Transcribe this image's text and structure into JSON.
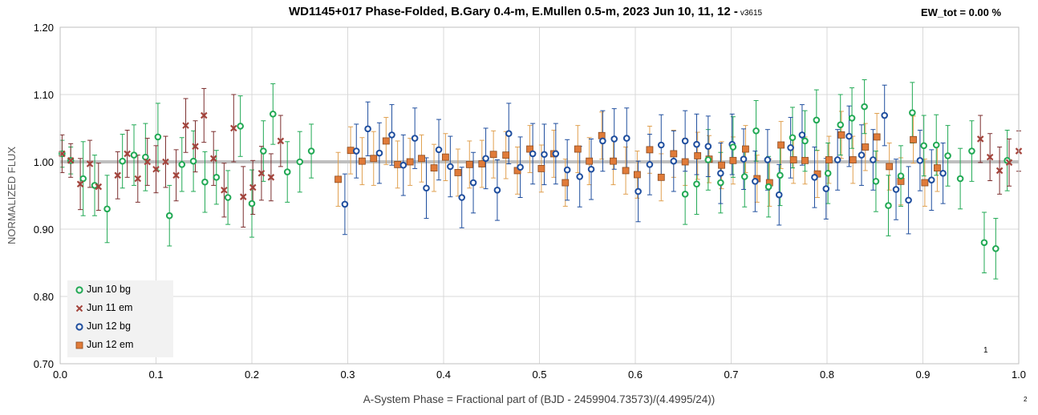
{
  "header": {
    "title": "WD1145+017 Phase-Folded, B.Gary 0.4-m, E.Mullen 0.5-m, 2023 Jun 10, 11, 12 -",
    "version": "v3615",
    "ew_label": "EW_tot = 0.00 %"
  },
  "footnotes": {
    "page_mark": "1",
    "corner_mark": "2"
  },
  "colors": {
    "jun10": "#21a954",
    "jun11": "#a3443c",
    "jun11_err": "#7b2e2e",
    "jun12bg": "#1f4e9e",
    "jun12em_fill": "#e07b39",
    "jun12em_edge": "#8a4a20",
    "jun12em_err": "#e0a050",
    "reference": "#bfbfbf",
    "grid": "#d9d9d9"
  },
  "chart_data": {
    "type": "scatter",
    "xlabel": "A-System Phase = Fractional part of (BJD - 2459904.73573)/(4.4995/24))",
    "ylabel": "NORMALIZED FLUX",
    "xlim": [
      0,
      1
    ],
    "ylim": [
      0.7,
      1.2
    ],
    "x_ticks": [
      "0.0",
      "0.1",
      "0.2",
      "0.3",
      "0.4",
      "0.5",
      "0.6",
      "0.7",
      "0.8",
      "0.9",
      "1.0"
    ],
    "y_ticks": [
      "0.70",
      "0.80",
      "0.90",
      "1.00",
      "1.10",
      "1.20"
    ],
    "reference_line": 1.0,
    "grid": true,
    "legend_position": "bottom-left",
    "series": [
      {
        "name": "Jun 10 bg",
        "marker": "open-circle",
        "color": "#21a954",
        "x": [
          0.002,
          0.011,
          0.024,
          0.036,
          0.049,
          0.065,
          0.077,
          0.089,
          0.102,
          0.114,
          0.127,
          0.139,
          0.151,
          0.163,
          0.175,
          0.188,
          0.2,
          0.212,
          0.222,
          0.237,
          0.25,
          0.262,
          0.652,
          0.664,
          0.676,
          0.689,
          0.702,
          0.714,
          0.726,
          0.739,
          0.751,
          0.764,
          0.777,
          0.789,
          0.801,
          0.814,
          0.826,
          0.839,
          0.851,
          0.864,
          0.877,
          0.889,
          0.901,
          0.914,
          0.926,
          0.939,
          0.951,
          0.964,
          0.976,
          0.988
        ],
        "y": [
          1.012,
          1.002,
          0.975,
          0.965,
          0.93,
          1.001,
          1.01,
          1.007,
          1.037,
          0.92,
          0.996,
          1.001,
          0.97,
          0.977,
          0.947,
          1.053,
          0.938,
          1.016,
          1.071,
          0.985,
          1.0,
          1.016,
          0.952,
          0.967,
          1.003,
          0.969,
          1.022,
          0.978,
          1.046,
          0.963,
          0.98,
          1.036,
          1.031,
          1.062,
          0.983,
          1.055,
          1.065,
          1.082,
          0.971,
          0.935,
          0.979,
          1.073,
          1.024,
          1.025,
          1.009,
          0.975,
          1.016,
          0.88,
          0.871,
          1.002
        ],
        "err": [
          0.02,
          0.02,
          0.055,
          0.045,
          0.05,
          0.04,
          0.045,
          0.05,
          0.05,
          0.045,
          0.04,
          0.045,
          0.045,
          0.04,
          0.04,
          0.045,
          0.05,
          0.045,
          0.045,
          0.045,
          0.045,
          0.04,
          0.045,
          0.045,
          0.045,
          0.045,
          0.045,
          0.045,
          0.045,
          0.045,
          0.045,
          0.045,
          0.045,
          0.045,
          0.045,
          0.045,
          0.045,
          0.04,
          0.045,
          0.045,
          0.045,
          0.045,
          0.045,
          0.045,
          0.045,
          0.045,
          0.045,
          0.045,
          0.045,
          0.045
        ]
      },
      {
        "name": "Jun 11 em",
        "marker": "x",
        "color": "#a3443c",
        "x": [
          0.002,
          0.011,
          0.021,
          0.031,
          0.04,
          0.06,
          0.07,
          0.081,
          0.091,
          0.1,
          0.11,
          0.121,
          0.131,
          0.141,
          0.15,
          0.16,
          0.171,
          0.181,
          0.191,
          0.201,
          0.21,
          0.22,
          0.23,
          0.96,
          0.97,
          0.98,
          0.99,
          1.0
        ],
        "y": [
          1.012,
          1.002,
          0.967,
          0.997,
          0.963,
          0.98,
          1.012,
          0.975,
          1.0,
          0.989,
          1.0,
          0.98,
          1.054,
          1.023,
          1.069,
          1.005,
          0.958,
          1.05,
          0.948,
          0.962,
          0.983,
          0.977,
          1.031,
          1.034,
          1.007,
          0.987,
          0.999,
          1.016
        ],
        "err": [
          0.028,
          0.025,
          0.038,
          0.035,
          0.035,
          0.035,
          0.035,
          0.035,
          0.035,
          0.035,
          0.038,
          0.038,
          0.04,
          0.038,
          0.04,
          0.04,
          0.04,
          0.05,
          0.045,
          0.04,
          0.04,
          0.035,
          0.038,
          0.035,
          0.035,
          0.035,
          0.035,
          0.03
        ]
      },
      {
        "name": "Jun 12 bg",
        "marker": "open-circle",
        "color": "#1f4e9e",
        "x": [
          0.297,
          0.309,
          0.321,
          0.333,
          0.346,
          0.358,
          0.37,
          0.382,
          0.395,
          0.407,
          0.419,
          0.431,
          0.444,
          0.456,
          0.468,
          0.48,
          0.493,
          0.505,
          0.517,
          0.529,
          0.542,
          0.554,
          0.566,
          0.578,
          0.591,
          0.603,
          0.615,
          0.627,
          0.64,
          0.652,
          0.664,
          0.676,
          0.689,
          0.701,
          0.713,
          0.725,
          0.738,
          0.75,
          0.762,
          0.774,
          0.787,
          0.799,
          0.811,
          0.823,
          0.836,
          0.848,
          0.86,
          0.872,
          0.885,
          0.897,
          0.909,
          0.921
        ],
        "y": [
          0.937,
          1.016,
          1.049,
          1.013,
          1.04,
          0.995,
          1.035,
          0.961,
          1.018,
          0.993,
          0.947,
          0.969,
          1.005,
          0.958,
          1.042,
          0.992,
          1.012,
          1.011,
          1.012,
          0.988,
          0.978,
          0.989,
          1.031,
          1.034,
          1.035,
          0.956,
          0.996,
          1.025,
          1.001,
          1.031,
          1.026,
          1.023,
          0.983,
          1.026,
          1.004,
          0.971,
          1.003,
          0.951,
          1.021,
          1.04,
          0.977,
          0.96,
          1.003,
          1.038,
          1.01,
          1.003,
          1.069,
          0.959,
          0.943,
          1.002,
          0.973,
          0.983
        ],
        "err": [
          0.045,
          0.04,
          0.04,
          0.045,
          0.045,
          0.045,
          0.045,
          0.045,
          0.045,
          0.045,
          0.045,
          0.045,
          0.045,
          0.045,
          0.045,
          0.045,
          0.045,
          0.045,
          0.045,
          0.045,
          0.045,
          0.045,
          0.045,
          0.045,
          0.045,
          0.045,
          0.045,
          0.045,
          0.045,
          0.045,
          0.045,
          0.045,
          0.045,
          0.045,
          0.045,
          0.045,
          0.045,
          0.045,
          0.045,
          0.045,
          0.045,
          0.045,
          0.045,
          0.045,
          0.045,
          0.045,
          0.045,
          0.045,
          0.05,
          0.045,
          0.045,
          0.045
        ]
      },
      {
        "name": "Jun 12 em",
        "marker": "filled-square",
        "color": "#e07b39",
        "x": [
          0.29,
          0.303,
          0.315,
          0.327,
          0.34,
          0.352,
          0.365,
          0.377,
          0.39,
          0.402,
          0.415,
          0.427,
          0.44,
          0.452,
          0.465,
          0.477,
          0.49,
          0.502,
          0.515,
          0.527,
          0.54,
          0.552,
          0.565,
          0.577,
          0.59,
          0.602,
          0.615,
          0.627,
          0.64,
          0.652,
          0.665,
          0.677,
          0.69,
          0.702,
          0.715,
          0.727,
          0.74,
          0.752,
          0.765,
          0.777,
          0.79,
          0.802,
          0.815,
          0.827,
          0.84,
          0.852,
          0.865,
          0.877,
          0.89,
          0.902,
          0.915
        ],
        "y": [
          0.974,
          1.017,
          1.001,
          1.005,
          1.031,
          0.996,
          1.0,
          1.005,
          0.991,
          1.007,
          0.984,
          0.996,
          0.997,
          1.011,
          1.01,
          0.987,
          1.019,
          0.99,
          1.012,
          0.969,
          1.019,
          1.001,
          1.039,
          1.001,
          0.987,
          0.981,
          1.018,
          0.977,
          1.012,
          1.0,
          1.009,
          1.004,
          0.995,
          1.002,
          1.019,
          0.975,
          0.969,
          1.025,
          1.003,
          1.002,
          0.982,
          1.003,
          1.04,
          1.003,
          1.022,
          1.037,
          0.993,
          0.971,
          1.033,
          0.969,
          0.991
        ],
        "err": [
          0.04,
          0.035,
          0.035,
          0.04,
          0.035,
          0.035,
          0.035,
          0.035,
          0.035,
          0.035,
          0.035,
          0.035,
          0.035,
          0.035,
          0.035,
          0.035,
          0.035,
          0.035,
          0.035,
          0.035,
          0.035,
          0.035,
          0.035,
          0.035,
          0.035,
          0.035,
          0.035,
          0.035,
          0.035,
          0.035,
          0.035,
          0.035,
          0.035,
          0.035,
          0.035,
          0.035,
          0.035,
          0.035,
          0.035,
          0.035,
          0.035,
          0.035,
          0.035,
          0.035,
          0.035,
          0.035,
          0.035,
          0.035,
          0.035,
          0.035,
          0.035
        ]
      }
    ]
  }
}
